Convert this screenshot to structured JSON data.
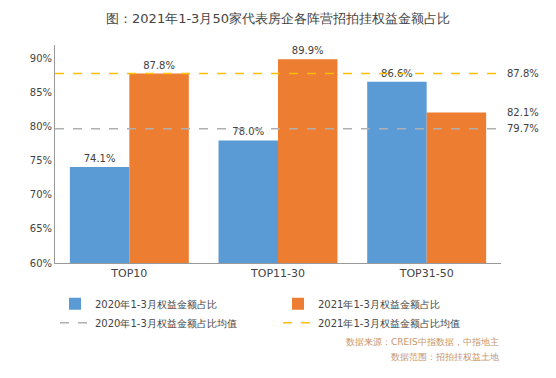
{
  "chart_data": {
    "type": "bar",
    "title": "图：2021年1-3月50家代表房企各阵营招拍挂权益金额占比",
    "categories": [
      "TOP10",
      "TOP11-30",
      "TOP31-50"
    ],
    "series": [
      {
        "name": "2020年1-3月权益金额占比",
        "type": "bar",
        "color": "#5b9bd5",
        "values": [
          74.1,
          78.0,
          86.6
        ],
        "value_labels": [
          "74.1%",
          "78.0%",
          "86.6%"
        ]
      },
      {
        "name": "2021年1-3月权益金额占比",
        "type": "bar",
        "color": "#ed7d31",
        "values": [
          87.8,
          89.9,
          82.1
        ],
        "value_labels": [
          "87.8%",
          "89.9%",
          null
        ]
      },
      {
        "name": "2020年1-3月权益金额占比均值",
        "type": "line",
        "color": "#b0b0b0",
        "line_style": "dashed",
        "y": 79.7
      },
      {
        "name": "2021年1-3月权益金额占比均值",
        "type": "line",
        "color": "#ffc000",
        "line_style": "dashed",
        "y": 87.8
      }
    ],
    "ylim": [
      60,
      92
    ],
    "yticks": [
      {
        "value": 60,
        "label": "60%"
      },
      {
        "value": 65,
        "label": "65%"
      },
      {
        "value": 70,
        "label": "70%"
      },
      {
        "value": 75,
        "label": "75%"
      },
      {
        "value": 80,
        "label": "80%"
      },
      {
        "value": 85,
        "label": "85%"
      },
      {
        "value": 90,
        "label": "90%"
      }
    ],
    "grid": false,
    "data_labels": true,
    "annotations": [
      {
        "text": "87.8%",
        "y": 87.8
      },
      {
        "text": "82.1%",
        "y": 82.1
      },
      {
        "text": "79.7%",
        "y": 79.7
      },
      {
        "text": "数据来源：CREIS中指数据，中指地主",
        "color": "#c8956c"
      },
      {
        "text": "数据范围：招拍挂权益土地",
        "color": "#c8956c"
      }
    ]
  }
}
